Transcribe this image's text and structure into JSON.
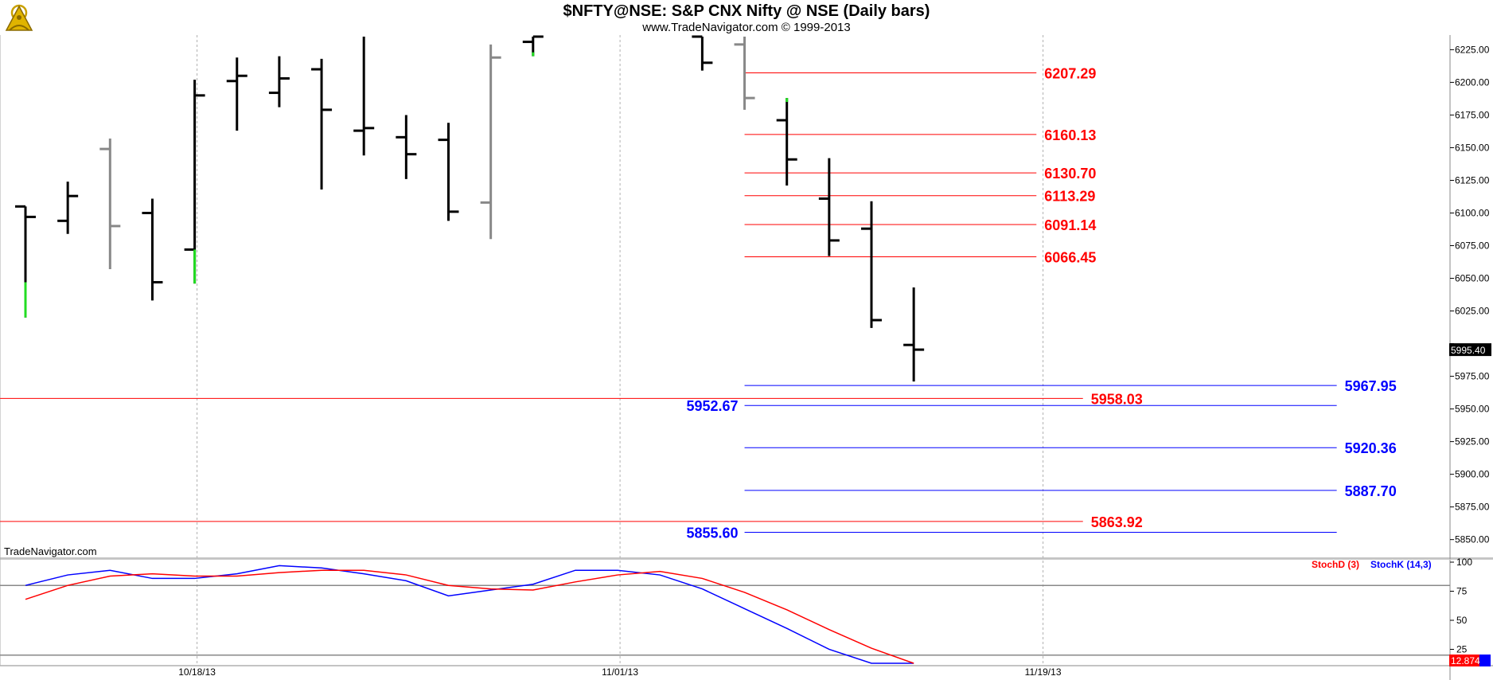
{
  "header": {
    "title": "$NFTY@NSE:  S&P CNX Nifty @ NSE  (Daily bars)",
    "subtitle": "www.TradeNavigator.com © 1999-2013",
    "watermark": "TradeNavigator.com",
    "logo_icon": "sextant-logo-icon"
  },
  "chart_data": [
    {
      "type": "ohlc",
      "y_axis": {
        "ylim": [
          5837,
          6235
        ],
        "ticks": [
          5850,
          5875,
          5900,
          5925,
          5950,
          5975,
          6000,
          6025,
          6050,
          6075,
          6100,
          6125,
          6150,
          6175,
          6200,
          6225
        ],
        "tick_labels": [
          "5850.00",
          "5875.00",
          "5900.00",
          "5925.00",
          "5950.00",
          "5975.00",
          "",
          "6025.00",
          "6050.00",
          "6075.00",
          "6100.00",
          "6125.00",
          "6150.00",
          "6175.00",
          "6200.00",
          "6225.00"
        ],
        "last_price_label": "5995.40",
        "last_price": 5995.4
      },
      "x_axis": {
        "dates": [
          "10/18/13",
          "11/01/13",
          "11/19/13"
        ],
        "date_slot": [
          4,
          14,
          24
        ]
      },
      "bars": [
        {
          "slot": 0,
          "o": 6105,
          "h": 6105,
          "l": 6020,
          "c": 6097,
          "color": "#000000",
          "tail": {
            "from": 6047,
            "to": 6020,
            "color": "#22dd22"
          }
        },
        {
          "slot": 1,
          "o": 6094,
          "h": 6124,
          "l": 6084,
          "c": 6113,
          "color": "#000000"
        },
        {
          "slot": 2,
          "o": 6149,
          "h": 6157,
          "l": 6057,
          "c": 6090,
          "color": "#888888"
        },
        {
          "slot": 3,
          "o": 6100,
          "h": 6111,
          "l": 6033,
          "c": 6047,
          "color": "#000000"
        },
        {
          "slot": 4,
          "o": 6072,
          "h": 6202,
          "l": 6046,
          "c": 6190,
          "color": "#000000",
          "tail": {
            "from": 6072,
            "to": 6046,
            "color": "#22dd22"
          }
        },
        {
          "slot": 5,
          "o": 6201,
          "h": 6219,
          "l": 6163,
          "c": 6205,
          "color": "#000000"
        },
        {
          "slot": 6,
          "o": 6192,
          "h": 6220,
          "l": 6181,
          "c": 6203,
          "color": "#000000"
        },
        {
          "slot": 7,
          "o": 6210,
          "h": 6218,
          "l": 6118,
          "c": 6179,
          "color": "#000000"
        },
        {
          "slot": 8,
          "o": 6163,
          "h": 6235,
          "l": 6144,
          "c": 6165,
          "color": "#000000"
        },
        {
          "slot": 9,
          "o": 6158,
          "h": 6175,
          "l": 6126,
          "c": 6145,
          "color": "#000000"
        },
        {
          "slot": 10,
          "o": 6156,
          "h": 6169,
          "l": 6094,
          "c": 6101,
          "color": "#000000"
        },
        {
          "slot": 11,
          "o": 6108,
          "h": 6229,
          "l": 6080,
          "c": 6219,
          "color": "#888888"
        },
        {
          "slot": 12,
          "o": 6231,
          "h": 6235,
          "l": 6220,
          "c": 6235,
          "color": "#000000",
          "tail": {
            "from": 6223,
            "to": 6220,
            "color": "#22dd22"
          }
        },
        {
          "slot": 16,
          "o": 6235,
          "h": 6235,
          "l": 6209,
          "c": 6215,
          "color": "#000000"
        },
        {
          "slot": 17,
          "o": 6229,
          "h": 6235,
          "l": 6179,
          "c": 6188,
          "color": "#888888"
        },
        {
          "slot": 18,
          "o": 6171,
          "h": 6188,
          "l": 6121,
          "c": 6141,
          "color": "#000000",
          "tail": {
            "from": 6188,
            "to": 6185,
            "color": "#22dd22"
          }
        },
        {
          "slot": 19,
          "o": 6111,
          "h": 6142,
          "l": 6067,
          "c": 6079,
          "color": "#000000"
        },
        {
          "slot": 20,
          "o": 6088,
          "h": 6109,
          "l": 6012,
          "c": 6018,
          "color": "#000000"
        },
        {
          "slot": 21,
          "o": 5999,
          "h": 6043,
          "l": 5971,
          "c": 5995.4,
          "color": "#000000"
        }
      ],
      "levels": [
        {
          "value": 6207.29,
          "label": "6207.29",
          "color": "#ff0000",
          "from_slot": 17,
          "to_slot": 23.9,
          "label_side": "right"
        },
        {
          "value": 6160.13,
          "label": "6160.13",
          "color": "#ff0000",
          "from_slot": 17,
          "to_slot": 23.9,
          "label_side": "right"
        },
        {
          "value": 6130.7,
          "label": "6130.70",
          "color": "#ff0000",
          "from_slot": 17,
          "to_slot": 23.9,
          "label_side": "right"
        },
        {
          "value": 6113.29,
          "label": "6113.29",
          "color": "#ff0000",
          "from_slot": 17,
          "to_slot": 23.9,
          "label_side": "right"
        },
        {
          "value": 6091.14,
          "label": "6091.14",
          "color": "#ff0000",
          "from_slot": 17,
          "to_slot": 23.9,
          "label_side": "right"
        },
        {
          "value": 6066.45,
          "label": "6066.45",
          "color": "#ff0000",
          "from_slot": 17,
          "to_slot": 23.9,
          "label_side": "right"
        },
        {
          "value": 5958.03,
          "label": "5958.03",
          "color": "#ff0000",
          "from_slot": -0.6,
          "to_slot": 25,
          "label_side": "right"
        },
        {
          "value": 5863.92,
          "label": "5863.92",
          "color": "#ff0000",
          "from_slot": -0.6,
          "to_slot": 25,
          "label_side": "right"
        },
        {
          "value": 5967.95,
          "label": "5967.95",
          "color": "#0000ff",
          "from_slot": 17,
          "to_slot": 31,
          "label_side": "right"
        },
        {
          "value": 5952.67,
          "label": "5952.67",
          "color": "#0000ff",
          "from_slot": 17,
          "to_slot": 31,
          "label_side": "left"
        },
        {
          "value": 5920.36,
          "label": "5920.36",
          "color": "#0000ff",
          "from_slot": 17,
          "to_slot": 31,
          "label_side": "right"
        },
        {
          "value": 5887.7,
          "label": "5887.70",
          "color": "#0000ff",
          "from_slot": 17,
          "to_slot": 31,
          "label_side": "right"
        },
        {
          "value": 5855.6,
          "label": "5855.60",
          "color": "#0000ff",
          "from_slot": 17,
          "to_slot": 31,
          "label_side": "left"
        }
      ]
    },
    {
      "type": "line",
      "title": "",
      "y_axis": {
        "ylim": [
          13,
          100
        ],
        "ticks": [
          25,
          50,
          75,
          100
        ],
        "tick_labels": [
          "25",
          "50",
          "75",
          "100"
        ],
        "reference_lines": [
          80,
          20
        ]
      },
      "legend": [
        {
          "name": "StochD (3)",
          "color": "#ff0000"
        },
        {
          "name": "StochK (14,3)",
          "color": "#0000ff"
        }
      ],
      "last_value_label": "12.874",
      "series": [
        {
          "name": "StochK (14,3)",
          "color": "#0000ff",
          "x": [
            0,
            1,
            2,
            3,
            4,
            5,
            6,
            7,
            8,
            9,
            10,
            11,
            12,
            13,
            14,
            15,
            16,
            17,
            18,
            19,
            20,
            21
          ],
          "values": [
            80,
            89,
            93,
            86,
            86,
            90,
            97,
            95,
            90,
            84,
            71,
            76,
            81,
            93,
            93,
            89,
            77,
            60,
            43,
            25,
            13,
            7
          ]
        },
        {
          "name": "StochD (3)",
          "color": "#ff0000",
          "x": [
            0,
            1,
            2,
            3,
            4,
            5,
            6,
            7,
            8,
            9,
            10,
            11,
            12,
            13,
            14,
            15,
            16,
            17,
            18,
            19,
            20,
            21
          ],
          "values": [
            68,
            80,
            88,
            90,
            88,
            88,
            91,
            93,
            93,
            89,
            80,
            77,
            76,
            83,
            89,
            92,
            86,
            74,
            59,
            42,
            26,
            13
          ]
        }
      ]
    }
  ]
}
